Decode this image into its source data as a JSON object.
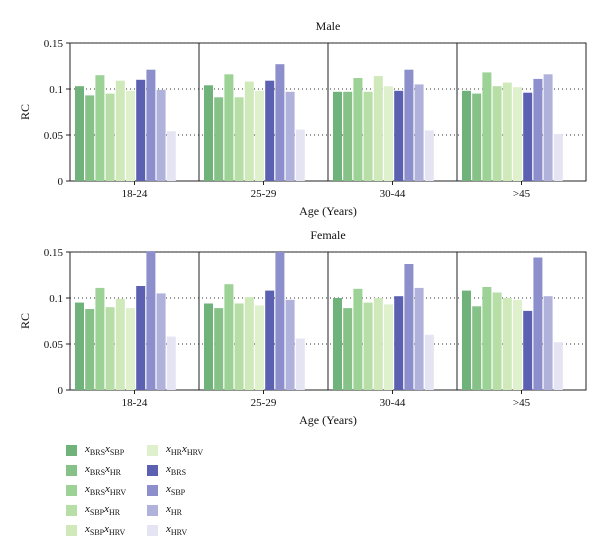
{
  "colors": {
    "x_brs_x_sbp": "#6fb27a",
    "x_brs_x_hr": "#86c287",
    "x_brs_x_hrv": "#9dd296",
    "x_sbp_x_hr": "#b6dea6",
    "x_sbp_x_hrv": "#cfe9bb",
    "x_hr_x_hrv": "#dff0cd",
    "x_brs": "#5b60b0",
    "x_sbp": "#8c8fcc",
    "x_hr": "#b0b2dc",
    "x_hrv": "#e4e4f3"
  },
  "legend": {
    "items": [
      {
        "key": "x_brs_x_sbp",
        "parts": [
          [
            "x",
            "BRS"
          ],
          [
            "x",
            "SBP"
          ]
        ]
      },
      {
        "key": "x_brs_x_hr",
        "parts": [
          [
            "x",
            "BRS"
          ],
          [
            "x",
            "HR"
          ]
        ]
      },
      {
        "key": "x_brs_x_hrv",
        "parts": [
          [
            "x",
            "BRS"
          ],
          [
            "x",
            "HRV"
          ]
        ]
      },
      {
        "key": "x_sbp_x_hr",
        "parts": [
          [
            "x",
            "SBP"
          ],
          [
            "x",
            "HR"
          ]
        ]
      },
      {
        "key": "x_sbp_x_hrv",
        "parts": [
          [
            "x",
            "SBP"
          ],
          [
            "x",
            "HRV"
          ]
        ]
      },
      {
        "key": "x_hr_x_hrv",
        "parts": [
          [
            "x",
            "HR"
          ],
          [
            "x",
            "HRV"
          ]
        ]
      },
      {
        "key": "x_brs",
        "parts": [
          [
            "x",
            "BRS"
          ]
        ]
      },
      {
        "key": "x_sbp",
        "parts": [
          [
            "x",
            "SBP"
          ]
        ]
      },
      {
        "key": "x_hr",
        "parts": [
          [
            "x",
            "HR"
          ]
        ]
      },
      {
        "key": "x_hrv",
        "parts": [
          [
            "x",
            "HRV"
          ]
        ]
      }
    ]
  },
  "chart_data": [
    {
      "type": "bar",
      "title": "Male",
      "xlabel": "Age (Years)",
      "ylabel": "RC",
      "ylim": [
        0,
        0.15
      ],
      "yticks": [
        0,
        0.05,
        0.1,
        0.15
      ],
      "ytick_labels": [
        "0",
        "0.05",
        "0.1",
        "0.15"
      ],
      "grid": "horizontal dotted",
      "categories": [
        "18-24",
        "25-29",
        "30-44",
        ">45"
      ],
      "series": [
        {
          "key": "x_brs_x_sbp",
          "values": [
            0.103,
            0.104,
            0.097,
            0.098
          ]
        },
        {
          "key": "x_brs_x_hr",
          "values": [
            0.093,
            0.091,
            0.097,
            0.095
          ]
        },
        {
          "key": "x_brs_x_hrv",
          "values": [
            0.115,
            0.116,
            0.112,
            0.118
          ]
        },
        {
          "key": "x_sbp_x_hr",
          "values": [
            0.095,
            0.091,
            0.097,
            0.103
          ]
        },
        {
          "key": "x_sbp_x_hrv",
          "values": [
            0.109,
            0.108,
            0.114,
            0.107
          ]
        },
        {
          "key": "x_hr_x_hrv",
          "values": [
            0.098,
            0.098,
            0.103,
            0.102
          ]
        },
        {
          "key": "x_brs",
          "values": [
            0.11,
            0.109,
            0.098,
            0.096
          ]
        },
        {
          "key": "x_sbp",
          "values": [
            0.121,
            0.127,
            0.121,
            0.111
          ]
        },
        {
          "key": "x_hr",
          "values": [
            0.099,
            0.097,
            0.105,
            0.116
          ]
        },
        {
          "key": "x_hrv",
          "values": [
            0.054,
            0.056,
            0.055,
            0.051
          ]
        }
      ]
    },
    {
      "type": "bar",
      "title": "Female",
      "xlabel": "Age (Years)",
      "ylabel": "RC",
      "ylim": [
        0,
        0.15
      ],
      "yticks": [
        0,
        0.05,
        0.1,
        0.15
      ],
      "ytick_labels": [
        "0",
        "0.05",
        "0.1",
        "0.15"
      ],
      "grid": "horizontal dotted",
      "categories": [
        "18-24",
        "25-29",
        "30-44",
        ">45"
      ],
      "series": [
        {
          "key": "x_brs_x_sbp",
          "values": [
            0.095,
            0.094,
            0.1,
            0.108
          ]
        },
        {
          "key": "x_brs_x_hr",
          "values": [
            0.088,
            0.089,
            0.089,
            0.091
          ]
        },
        {
          "key": "x_brs_x_hrv",
          "values": [
            0.111,
            0.115,
            0.11,
            0.112
          ]
        },
        {
          "key": "x_sbp_x_hr",
          "values": [
            0.09,
            0.094,
            0.095,
            0.106
          ]
        },
        {
          "key": "x_sbp_x_hrv",
          "values": [
            0.099,
            0.101,
            0.1,
            0.1
          ]
        },
        {
          "key": "x_hr_x_hrv",
          "values": [
            0.089,
            0.092,
            0.093,
            0.098
          ]
        },
        {
          "key": "x_brs",
          "values": [
            0.113,
            0.108,
            0.102,
            0.086
          ]
        },
        {
          "key": "x_sbp",
          "values": [
            0.151,
            0.15,
            0.137,
            0.144
          ]
        },
        {
          "key": "x_hr",
          "values": [
            0.105,
            0.098,
            0.111,
            0.102
          ]
        },
        {
          "key": "x_hrv",
          "values": [
            0.058,
            0.056,
            0.06,
            0.052
          ]
        }
      ]
    }
  ]
}
